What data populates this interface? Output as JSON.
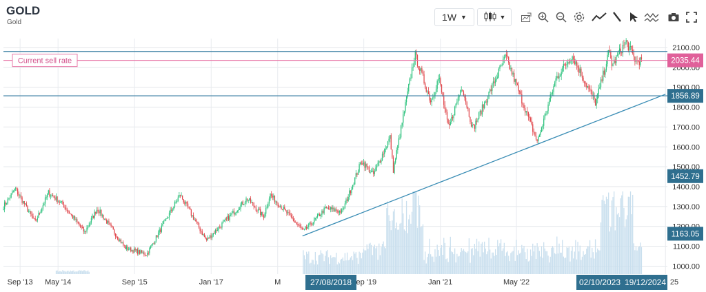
{
  "header": {
    "symbol": "GOLD",
    "name": "Gold"
  },
  "toolbar": {
    "interval": "1W",
    "icons": [
      "candlestick-icon",
      "compare-icon",
      "zoom-in-icon",
      "zoom-out-icon",
      "settings-icon",
      "line-tool-icon",
      "pen-icon",
      "cursor-icon",
      "indicators-icon",
      "camera-icon",
      "fullscreen-icon"
    ]
  },
  "annotations": {
    "sell_rate_label": "Current sell rate",
    "sell_rate_value": "2035.44",
    "resistance_value": "1856.89",
    "level_1452": "1452.79",
    "level_1163": "1163.05",
    "crosshair_x_1": "27/08/2018",
    "crosshair_x_2": "02/10/2023",
    "crosshair_x_3": "19/12/2024"
  },
  "colors": {
    "up": "#2ec27e",
    "down": "#e0474c",
    "sell_line": "#e879a8",
    "level_line": "#3a7fa3",
    "trend_line": "#3a8db5",
    "volume": "#c9dfee",
    "label_bg": "#2f6f8f"
  },
  "chart_data": {
    "type": "candlestick",
    "x_ticks": [
      "Sep '13",
      "May '14",
      "Sep '15",
      "Jan '17",
      "M",
      "Sep '19",
      "Jan '21",
      "May '22",
      "25"
    ],
    "y_ticks": [
      "2100.00",
      "2000.00",
      "1900.00",
      "1800.00",
      "1700.00",
      "1600.00",
      "1500.00",
      "1400.00",
      "1300.00",
      "1200.00",
      "1100.00",
      "1000.00"
    ],
    "ylim": [
      960,
      2145
    ],
    "xlim": [
      "2013-06",
      "2025-01"
    ],
    "series_path": [
      [
        "2013-06-01",
        1300
      ],
      [
        "2013-08-15",
        1390
      ],
      [
        "2013-12-20",
        1220
      ],
      [
        "2014-03-15",
        1370
      ],
      [
        "2014-06-15",
        1310
      ],
      [
        "2014-11-01",
        1170
      ],
      [
        "2015-01-20",
        1290
      ],
      [
        "2015-07-20",
        1090
      ],
      [
        "2015-12-01",
        1060
      ],
      [
        "2016-07-01",
        1360
      ],
      [
        "2016-12-15",
        1130
      ],
      [
        "2017-09-01",
        1340
      ],
      [
        "2017-12-15",
        1250
      ],
      [
        "2018-01-25",
        1360
      ],
      [
        "2018-08-27",
        1175
      ],
      [
        "2019-01-15",
        1290
      ],
      [
        "2019-05-01",
        1275
      ],
      [
        "2019-09-01",
        1530
      ],
      [
        "2019-11-15",
        1460
      ],
      [
        "2020-03-01",
        1650
      ],
      [
        "2020-03-20",
        1480
      ],
      [
        "2020-08-05",
        2065
      ],
      [
        "2020-11-15",
        1830
      ],
      [
        "2021-01-05",
        1950
      ],
      [
        "2021-03-08",
        1690
      ],
      [
        "2021-06-01",
        1910
      ],
      [
        "2021-08-10",
        1690
      ],
      [
        "2022-03-08",
        2055
      ],
      [
        "2022-09-25",
        1625
      ],
      [
        "2023-01-25",
        1950
      ],
      [
        "2023-05-04",
        2060
      ],
      [
        "2023-10-02",
        1820
      ],
      [
        "2023-12-27",
        2080
      ],
      [
        "2024-01-15",
        2010
      ],
      [
        "2024-04-12",
        2130
      ],
      [
        "2024-06-15",
        2030
      ],
      [
        "2024-07-20",
        2035
      ]
    ],
    "levels": {
      "sell_rate": 2035.44,
      "resistance": 1856.89,
      "top_band": 2080
    },
    "trendline": [
      [
        "2018-08-20",
        1152
      ],
      [
        "2024-12-20",
        1865
      ]
    ]
  }
}
